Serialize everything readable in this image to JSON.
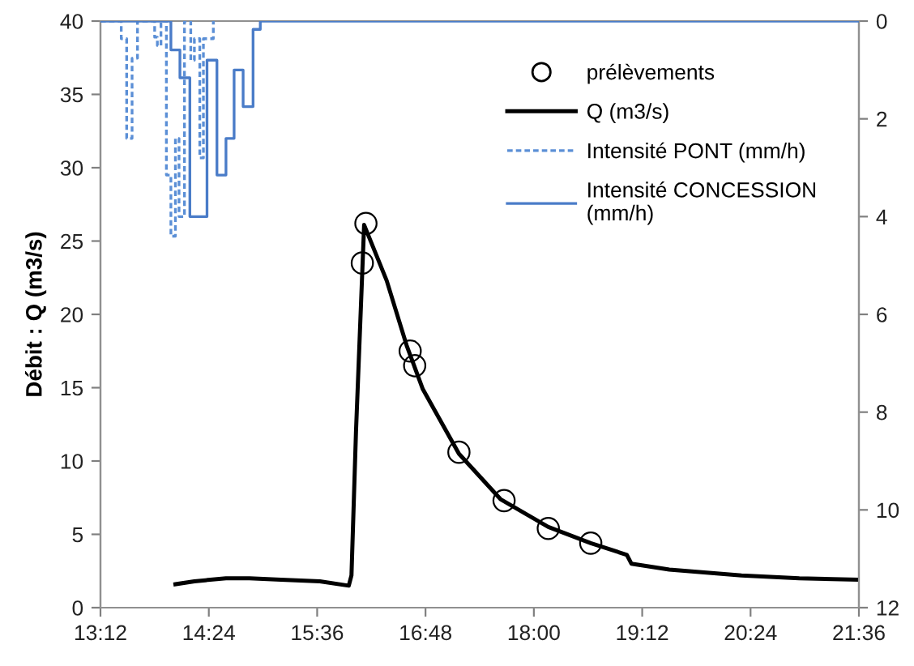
{
  "chart_data": {
    "type": "line",
    "ylabel": "Débit : Q (m3/s)",
    "xlim": [
      13.2,
      21.6
    ],
    "xticks": [
      {
        "value": 13.2,
        "label": "13:12"
      },
      {
        "value": 14.4,
        "label": "14:24"
      },
      {
        "value": 15.6,
        "label": "15:36"
      },
      {
        "value": 16.8,
        "label": "16:48"
      },
      {
        "value": 18,
        "label": "18:00"
      },
      {
        "value": 19.2,
        "label": "19:12"
      },
      {
        "value": 20.4,
        "label": "20:24"
      },
      {
        "value": 21.6,
        "label": "21:36"
      }
    ],
    "ylim": [
      0,
      40
    ],
    "yticks": [
      0,
      5,
      10,
      15,
      20,
      25,
      30,
      35,
      40
    ],
    "y2lim": [
      12,
      0
    ],
    "y2ticks": [
      0,
      2,
      4,
      6,
      8,
      10,
      12
    ],
    "legend": "top right",
    "grid": false,
    "series": [
      {
        "name": "prélèvements",
        "type": "scatter",
        "marker": "circle",
        "color": "#000000",
        "x": [
          16.1,
          16.14,
          16.63,
          16.68,
          17.17,
          17.67,
          18.16,
          18.63
        ],
        "values": [
          23.5,
          26.2,
          17.5,
          16.5,
          10.6,
          7.3,
          5.4,
          4.4
        ]
      },
      {
        "name": "Q (m3/s)",
        "marker": "none",
        "line_style": "solid",
        "color": "#000000",
        "x": [
          14.03,
          14.24,
          14.59,
          14.85,
          15.2,
          15.63,
          15.95,
          15.98,
          16.03,
          16.12,
          16.37,
          16.59,
          16.77,
          17.17,
          17.63,
          18.16,
          18.63,
          19.03,
          19.08,
          19.5,
          20.3,
          20.94,
          21.6
        ],
        "values": [
          1.6,
          1.8,
          2.0,
          2.0,
          1.9,
          1.8,
          1.5,
          2.2,
          12.0,
          26.1,
          22.3,
          17.9,
          14.9,
          10.5,
          7.4,
          5.5,
          4.4,
          3.6,
          3.0,
          2.6,
          2.2,
          2.0,
          1.9
        ]
      },
      {
        "name": "Intensité PONT (mm/h)",
        "type": "step",
        "axis": "y2",
        "line_style": "dashed",
        "color": "#5b8fd6",
        "x": [
          13.2,
          13.43,
          13.49,
          13.55,
          13.61,
          13.8,
          13.83,
          13.87,
          13.93,
          13.98,
          14.03,
          14.07,
          14.13,
          14.2,
          14.24,
          14.3,
          14.34,
          14.45
        ],
        "values": [
          0,
          0.36,
          2.4,
          0.76,
          0,
          0.33,
          0.5,
          0,
          3.15,
          4.4,
          2.4,
          4.0,
          0,
          0.8,
          0.36,
          2.8,
          0.36,
          0
        ]
      },
      {
        "name": "Intensité CONCESSION\n(mm/h)",
        "type": "step",
        "axis": "y2",
        "line_style": "solid",
        "color": "#4a7cc8",
        "x": [
          13.2,
          13.98,
          14.08,
          14.19,
          14.38,
          14.49,
          14.59,
          14.68,
          14.78,
          14.89,
          14.97,
          21.6
        ],
        "values": [
          0,
          0.59,
          1.16,
          4.0,
          0.8,
          3.15,
          2.4,
          1.0,
          1.75,
          0.17,
          0,
          0
        ]
      }
    ]
  }
}
